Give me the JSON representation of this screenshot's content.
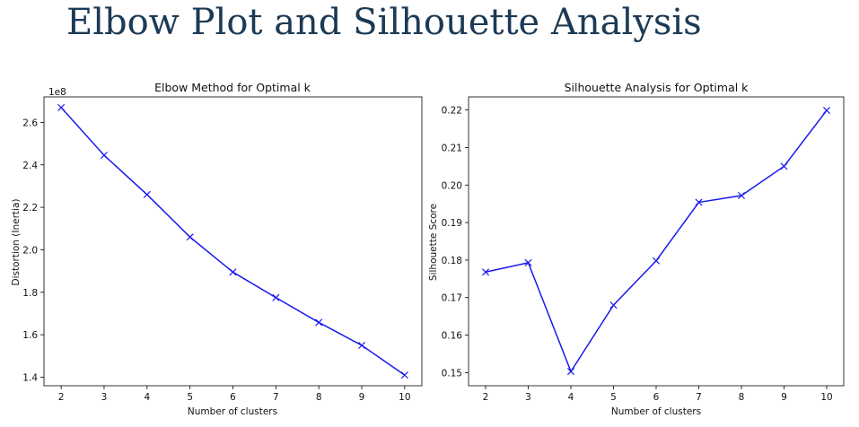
{
  "page": {
    "title": "Elbow Plot and Silhouette Analysis"
  },
  "colors": {
    "line": "#1a1aee",
    "title": "#1c3a55",
    "axis": "#000000"
  },
  "chart_data": [
    {
      "type": "line",
      "title": "Elbow Method for Optimal k",
      "xlabel": "Number of clusters",
      "ylabel": "Distortion (Inertia)",
      "offset_label": "1e8",
      "marker": "x",
      "x": [
        2,
        3,
        4,
        5,
        6,
        7,
        8,
        9,
        10
      ],
      "xticks": [
        "2",
        "3",
        "4",
        "5",
        "6",
        "7",
        "8",
        "9",
        "10"
      ],
      "ylim": [
        1.36,
        2.72
      ],
      "yticks": [
        1.4,
        1.6,
        1.8,
        2.0,
        2.2,
        2.4,
        2.6
      ],
      "ytick_labels": [
        "1.4",
        "1.6",
        "1.8",
        "2.0",
        "2.2",
        "2.4",
        "2.6"
      ],
      "series": [
        {
          "values": [
            2.67,
            2.445,
            2.26,
            2.06,
            1.895,
            1.775,
            1.658,
            1.55,
            1.41
          ]
        }
      ]
    },
    {
      "type": "line",
      "title": "Silhouette Analysis for Optimal k",
      "xlabel": "Number of clusters",
      "ylabel": "Silhouette Score",
      "marker": "x",
      "x": [
        2,
        3,
        4,
        5,
        6,
        7,
        8,
        9,
        10
      ],
      "xticks": [
        "2",
        "3",
        "4",
        "5",
        "6",
        "7",
        "8",
        "9",
        "10"
      ],
      "ylim": [
        0.1465,
        0.2235
      ],
      "yticks": [
        0.15,
        0.16,
        0.17,
        0.18,
        0.19,
        0.2,
        0.21,
        0.22
      ],
      "ytick_labels": [
        "0.15",
        "0.16",
        "0.17",
        "0.18",
        "0.19",
        "0.20",
        "0.21",
        "0.22"
      ],
      "series": [
        {
          "values": [
            0.1768,
            0.1793,
            0.1503,
            0.168,
            0.1798,
            0.1954,
            0.1972,
            0.205,
            0.2199
          ]
        }
      ]
    }
  ]
}
